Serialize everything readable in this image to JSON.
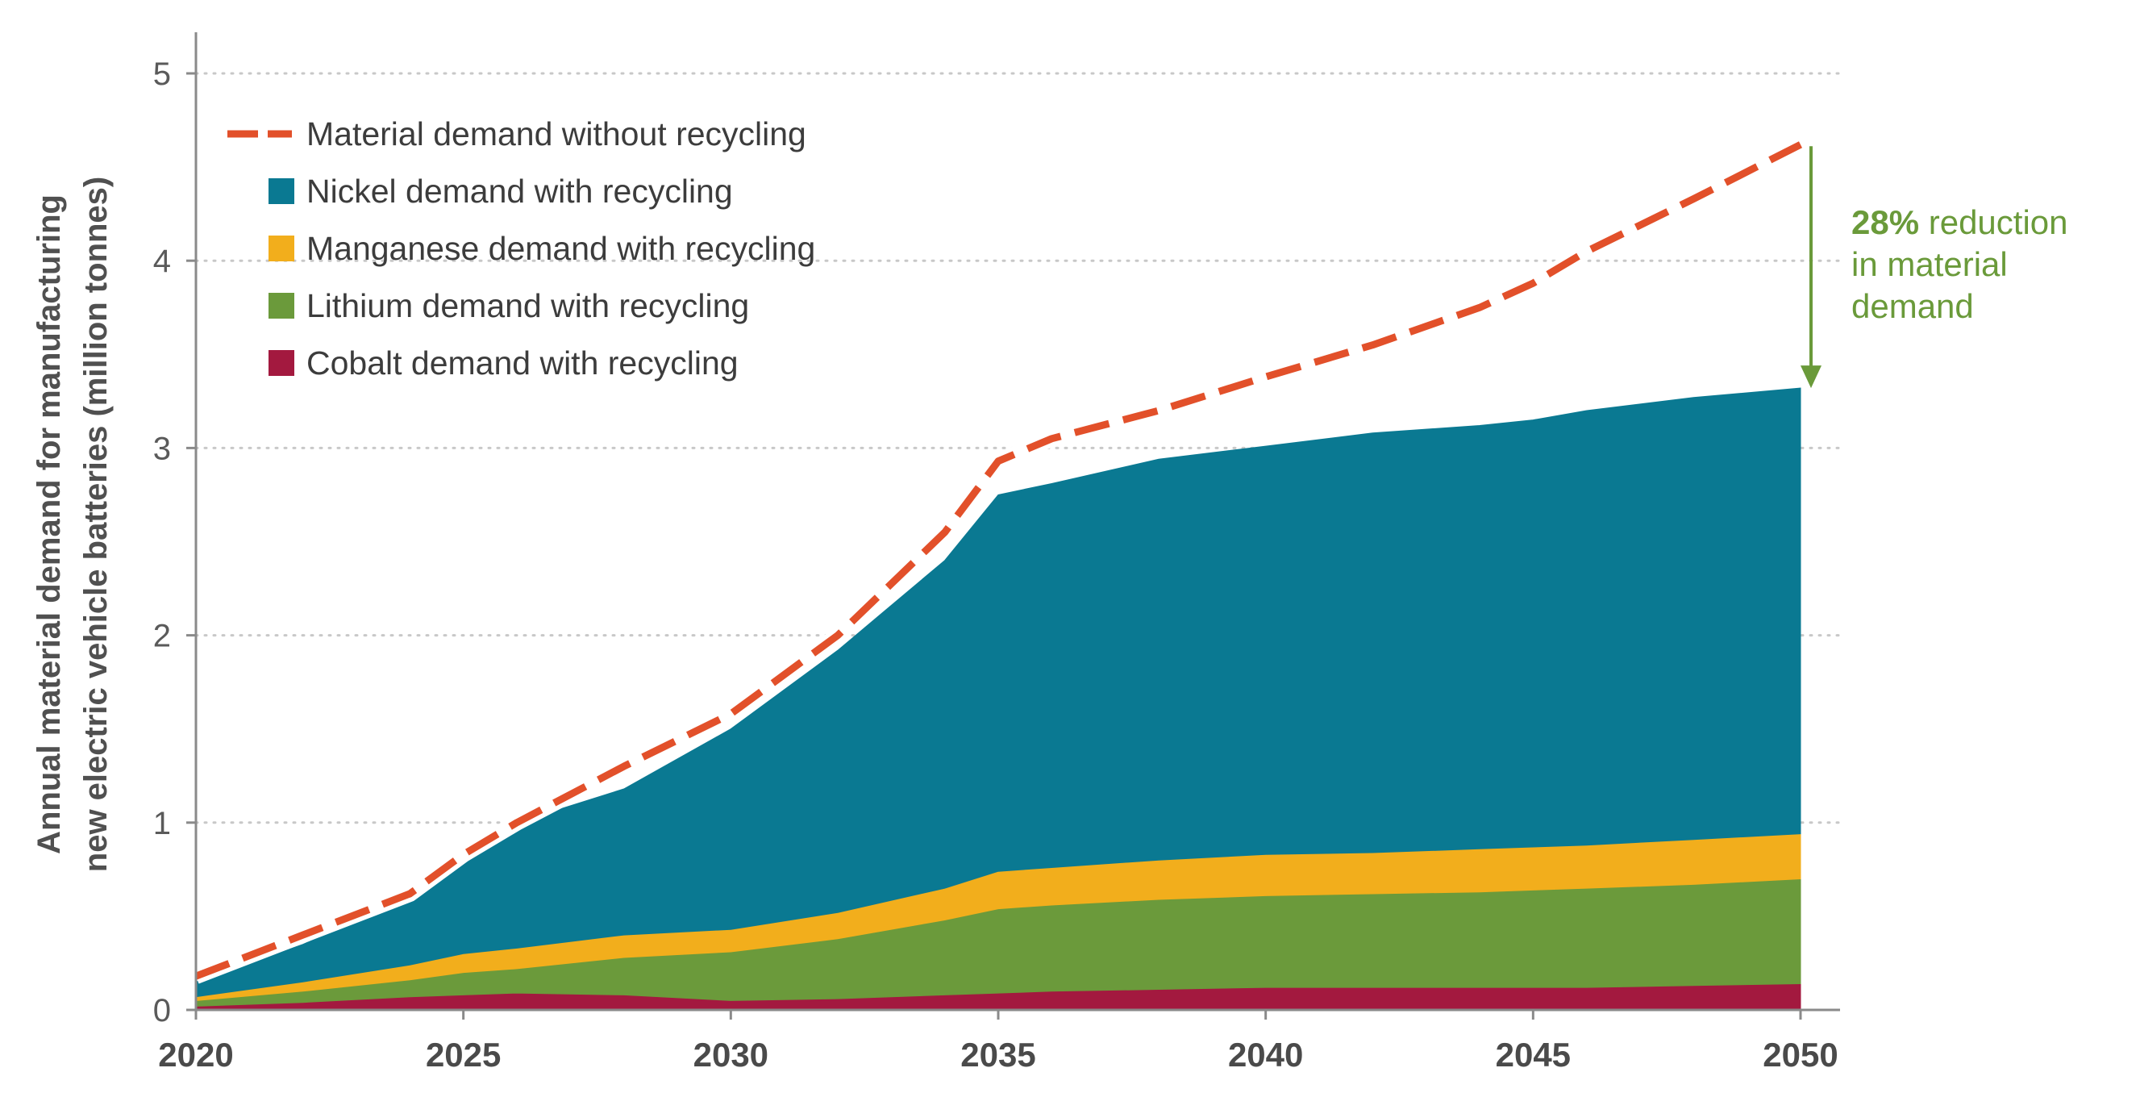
{
  "chart_data": {
    "type": "area",
    "title": "",
    "xlabel": "",
    "ylabel_line1": "Annual material demand for manufacturing",
    "ylabel_line2": "new electric vehicle batteries (million tonnes)",
    "xlim": [
      2020,
      2050
    ],
    "ylim": [
      0,
      5
    ],
    "x_ticks": [
      "2020",
      "2025",
      "2030",
      "2035",
      "2040",
      "2045",
      "2050"
    ],
    "y_ticks": [
      "0",
      "1",
      "2",
      "3",
      "4",
      "5"
    ],
    "x": [
      2020,
      2022,
      2024,
      2025,
      2026,
      2028,
      2030,
      2032,
      2034,
      2035,
      2036,
      2038,
      2040,
      2042,
      2044,
      2045,
      2046,
      2048,
      2050
    ],
    "stacked_series": [
      {
        "name": "Cobalt demand with recycling",
        "color": "#a3193f",
        "values": [
          0.02,
          0.04,
          0.07,
          0.08,
          0.09,
          0.08,
          0.05,
          0.06,
          0.08,
          0.09,
          0.1,
          0.11,
          0.12,
          0.12,
          0.12,
          0.12,
          0.12,
          0.13,
          0.14
        ]
      },
      {
        "name": "Lithium demand with recycling",
        "color": "#6b9a3b",
        "values": [
          0.03,
          0.06,
          0.09,
          0.12,
          0.13,
          0.2,
          0.26,
          0.32,
          0.4,
          0.45,
          0.46,
          0.48,
          0.49,
          0.5,
          0.51,
          0.52,
          0.53,
          0.54,
          0.56
        ]
      },
      {
        "name": "Manganese demand with recycling",
        "color": "#f2ae1c",
        "values": [
          0.02,
          0.05,
          0.08,
          0.1,
          0.11,
          0.12,
          0.12,
          0.14,
          0.17,
          0.2,
          0.2,
          0.21,
          0.22,
          0.22,
          0.23,
          0.23,
          0.23,
          0.24,
          0.24
        ]
      },
      {
        "name": "Nickel demand with recycling",
        "color": "#0a7992",
        "values": [
          0.08,
          0.2,
          0.36,
          0.52,
          0.67,
          0.78,
          1.07,
          1.4,
          1.75,
          2.01,
          2.05,
          2.14,
          2.18,
          2.24,
          2.26,
          2.28,
          2.32,
          2.36,
          2.38
        ]
      }
    ],
    "line_series": {
      "name": "Material demand without recycling",
      "color": "#e2502a",
      "x": [
        2020,
        2022,
        2024,
        2025,
        2026,
        2028,
        2030,
        2032,
        2034,
        2035,
        2036,
        2038,
        2040,
        2042,
        2044,
        2045,
        2046,
        2048,
        2050
      ],
      "values": [
        0.18,
        0.4,
        0.62,
        0.83,
        1.0,
        1.3,
        1.58,
        2.0,
        2.55,
        2.93,
        3.05,
        3.2,
        3.38,
        3.55,
        3.75,
        3.88,
        4.05,
        4.33,
        4.62
      ]
    },
    "legend": {
      "placement": "top-left",
      "entries": [
        {
          "label": "Material demand without recycling",
          "kind": "dashed-line",
          "color": "#e2502a"
        },
        {
          "label": "Nickel demand with recycling",
          "kind": "swatch",
          "color": "#0a7992"
        },
        {
          "label": "Manganese demand with recycling",
          "kind": "swatch",
          "color": "#f2ae1c"
        },
        {
          "label": "Lithium demand with recycling",
          "kind": "swatch",
          "color": "#6b9a3b"
        },
        {
          "label": "Cobalt demand with recycling",
          "kind": "swatch",
          "color": "#a3193f"
        }
      ]
    },
    "annotation": {
      "bold_text": "28%",
      "text_line1": " reduction",
      "text_line2": "in material",
      "text_line3": "demand",
      "arrow_from_value": 4.62,
      "arrow_to_value": 3.32,
      "at_x": 2050,
      "color": "#6a9a3a"
    },
    "grid": "horizontal-dotted"
  }
}
